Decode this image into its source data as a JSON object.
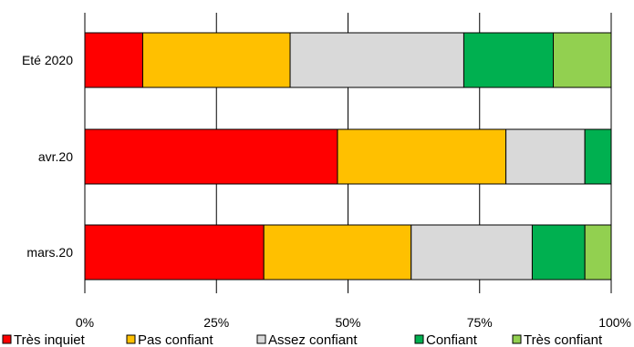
{
  "chart_data": {
    "type": "bar",
    "orientation": "horizontal",
    "stacked": "percent",
    "categories": [
      "Eté 2020",
      "avr.20",
      "mars.20"
    ],
    "series": [
      {
        "name": "Très inquiet",
        "values": [
          11,
          48,
          34
        ],
        "color": "#ff0000"
      },
      {
        "name": "Pas confiant",
        "values": [
          28,
          32,
          28
        ],
        "color": "#ffc000"
      },
      {
        "name": "Assez confiant",
        "values": [
          33,
          15,
          23
        ],
        "color": "#d9d9d9"
      },
      {
        "name": "Confiant",
        "values": [
          17,
          5,
          10
        ],
        "color": "#00b050"
      },
      {
        "name": "Très confiant",
        "values": [
          11,
          0,
          5
        ],
        "color": "#92d050"
      }
    ],
    "x_ticks": [
      "0%",
      "25%",
      "50%",
      "75%",
      "100%"
    ],
    "xlim": [
      0,
      100
    ],
    "grid": "vertical",
    "legend_position": "bottom"
  }
}
